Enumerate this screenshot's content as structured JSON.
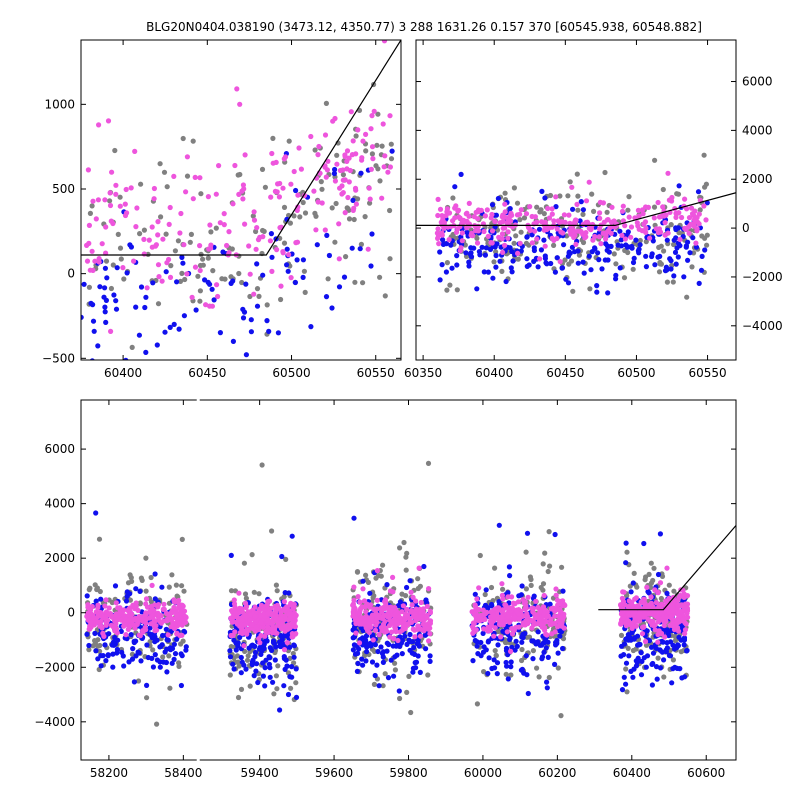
{
  "title": "BLG20N0404.038190 (3473.12, 4350.77)    3 288 1631.26 0.157 370 [60545.938, 60548.882]",
  "colors": {
    "gray": "#808080",
    "blue": "#1010ee",
    "magenta": "#ee55dd",
    "fit": "#000000"
  },
  "chart_data": [
    {
      "type": "scatter",
      "panel": "top-left",
      "xlim": [
        60375,
        60565
      ],
      "ylim": [
        -510,
        1380
      ],
      "xticks": [
        60400,
        60450,
        60500,
        60550
      ],
      "yticks": [
        -500,
        0,
        500,
        1000
      ],
      "yaxis_side": "left",
      "fit_line": {
        "x": [
          60375,
          60485,
          60565
        ],
        "y": [
          110,
          110,
          1380
        ]
      },
      "series": [
        {
          "color": "gray",
          "count": 170,
          "seed": 11,
          "clusters": [
            {
              "x0": 60375,
              "x1": 60560,
              "y_base": 200,
              "y_slope": 5,
              "y_start": 60480,
              "y_spread": 420
            }
          ]
        },
        {
          "color": "blue",
          "count": 110,
          "seed": 23,
          "clusters": [
            {
              "x0": 60375,
              "x1": 60560,
              "y_base": -150,
              "y_slope": 5,
              "y_start": 60480,
              "y_spread": 350
            }
          ]
        },
        {
          "color": "magenta",
          "count": 220,
          "seed": 37,
          "clusters": [
            {
              "x0": 60375,
              "x1": 60560,
              "y_base": 280,
              "y_slope": 6,
              "y_start": 60480,
              "y_spread": 330
            }
          ]
        }
      ]
    },
    {
      "type": "scatter",
      "panel": "top-right",
      "xlim": [
        60345,
        60570
      ],
      "ylim": [
        -5400,
        7700
      ],
      "xticks": [
        60350,
        60400,
        60450,
        60500,
        60550
      ],
      "yticks": [
        -4000,
        -2000,
        0,
        2000,
        4000,
        6000
      ],
      "yaxis_side": "right",
      "fit_line": {
        "x": [
          60345,
          60485,
          60570
        ],
        "y": [
          110,
          110,
          1450
        ]
      },
      "series": [
        {
          "color": "gray",
          "count": 220,
          "seed": 41,
          "clusters": [
            {
              "x0": 60360,
              "x1": 60550,
              "y_base": -300,
              "y_slope": 4,
              "y_start": 60480,
              "y_spread": 1600
            }
          ]
        },
        {
          "color": "blue",
          "count": 260,
          "seed": 53,
          "clusters": [
            {
              "x0": 60360,
              "x1": 60550,
              "y_base": -700,
              "y_slope": 4,
              "y_start": 60480,
              "y_spread": 1300
            }
          ]
        },
        {
          "color": "magenta",
          "count": 300,
          "seed": 67,
          "clusters": [
            {
              "x0": 60360,
              "x1": 60550,
              "y_base": 50,
              "y_slope": 5,
              "y_start": 60480,
              "y_spread": 700
            }
          ]
        }
      ]
    },
    {
      "type": "scatter",
      "panel": "bottom",
      "segments": [
        {
          "xlim": [
            58125,
            58440
          ],
          "xticks": [
            58200,
            58400
          ]
        },
        {
          "xlim": [
            59235,
            60680
          ],
          "xticks": [
            59400,
            59600,
            59800,
            60000,
            60200,
            60400,
            60600
          ]
        }
      ],
      "ylim": [
        -5400,
        7800
      ],
      "yticks": [
        -4000,
        -2000,
        0,
        2000,
        4000,
        6000
      ],
      "yaxis_side": "left",
      "fit_line": {
        "x": [
          60310,
          60485,
          60680
        ],
        "y": [
          110,
          110,
          3200
        ]
      },
      "series": [
        {
          "color": "gray",
          "count": 700,
          "seed": 71,
          "clusters": [
            {
              "x0": 58140,
              "x1": 58410,
              "y_base": -400,
              "y_spread": 1700
            },
            {
              "x0": 59320,
              "x1": 59500,
              "y_base": -500,
              "y_spread": 1800
            },
            {
              "x0": 59650,
              "x1": 59860,
              "y_base": -500,
              "y_spread": 1700
            },
            {
              "x0": 59970,
              "x1": 60220,
              "y_base": -400,
              "y_spread": 1600
            },
            {
              "x0": 60370,
              "x1": 60550,
              "y_base": -400,
              "y_spread": 1600
            }
          ]
        },
        {
          "color": "blue",
          "count": 900,
          "seed": 83,
          "clusters": [
            {
              "x0": 58140,
              "x1": 58410,
              "y_base": -800,
              "y_spread": 1200
            },
            {
              "x0": 59320,
              "x1": 59500,
              "y_base": -900,
              "y_spread": 1400
            },
            {
              "x0": 59650,
              "x1": 59860,
              "y_base": -800,
              "y_spread": 1300
            },
            {
              "x0": 59970,
              "x1": 60220,
              "y_base": -800,
              "y_spread": 1300
            },
            {
              "x0": 60370,
              "x1": 60550,
              "y_base": -700,
              "y_spread": 1300
            }
          ]
        },
        {
          "color": "magenta",
          "count": 1300,
          "seed": 97,
          "clusters": [
            {
              "x0": 58140,
              "x1": 58410,
              "y_base": -200,
              "y_spread": 500
            },
            {
              "x0": 59320,
              "x1": 59500,
              "y_base": -250,
              "y_spread": 550
            },
            {
              "x0": 59650,
              "x1": 59860,
              "y_base": -200,
              "y_spread": 500
            },
            {
              "x0": 59970,
              "x1": 60220,
              "y_base": -150,
              "y_spread": 500
            },
            {
              "x0": 60370,
              "x1": 60550,
              "y_base": 0,
              "y_spread": 550
            }
          ]
        }
      ]
    }
  ]
}
